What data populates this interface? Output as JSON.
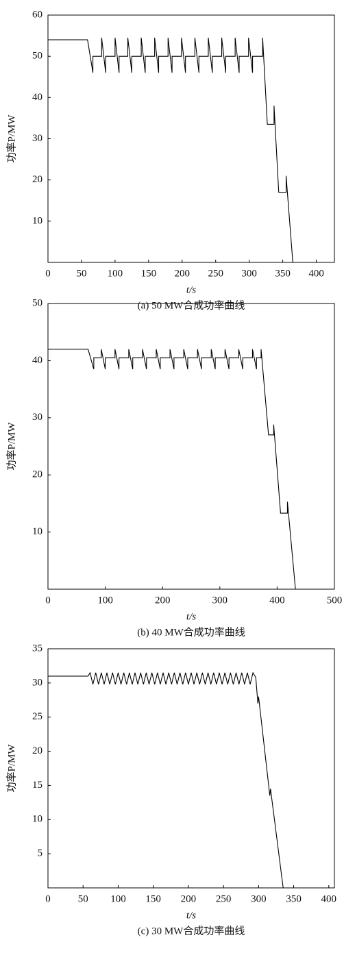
{
  "chart_data": [
    {
      "type": "line",
      "caption": "(a) 50 MW合成功率曲线",
      "xlabel": "t/s",
      "ylabel": "功率P/MW",
      "color": "#000000",
      "xlim": [
        0,
        427
      ],
      "ylim": [
        0,
        60
      ],
      "xticks": [
        0,
        50,
        100,
        150,
        200,
        250,
        300,
        350,
        400
      ],
      "yticks": [
        10,
        20,
        30,
        40,
        50,
        60
      ],
      "x": [
        0,
        59,
        67,
        67,
        80,
        80,
        86,
        86,
        100,
        100,
        106,
        106,
        119,
        119,
        125,
        125,
        139,
        139,
        145,
        145,
        159,
        159,
        165,
        165,
        179,
        179,
        185,
        185,
        199,
        199,
        205,
        205,
        219,
        219,
        225,
        225,
        239,
        239,
        245,
        245,
        259,
        259,
        265,
        265,
        279,
        279,
        285,
        285,
        299,
        299,
        305,
        305,
        320,
        320,
        327,
        337,
        337,
        344,
        355,
        355,
        365,
        375
      ],
      "values": [
        54,
        54,
        46,
        50,
        50,
        54.5,
        46,
        50,
        50,
        54.5,
        46,
        50,
        50,
        54.5,
        46,
        50,
        50,
        54.5,
        46,
        50,
        50,
        54.5,
        46,
        50,
        50,
        54.5,
        46,
        50,
        50,
        54.5,
        46,
        50,
        50,
        54.5,
        46,
        50,
        50,
        54.5,
        46,
        50,
        50,
        54.5,
        46,
        50,
        50,
        54.5,
        46,
        50,
        50,
        54.5,
        46,
        50,
        50,
        54.5,
        33.5,
        33.5,
        38,
        17,
        17,
        21,
        0,
        0
      ]
    },
    {
      "type": "line",
      "caption": "(b) 40 MW合成功率曲线",
      "xlabel": "t/s",
      "ylabel": "功率P/MW",
      "color": "#000000",
      "xlim": [
        0,
        500
      ],
      "ylim": [
        0,
        50
      ],
      "xticks": [
        0,
        100,
        200,
        300,
        400,
        500
      ],
      "yticks": [
        10,
        20,
        30,
        40,
        50
      ],
      "x": [
        0,
        70,
        80,
        80,
        93,
        93,
        100,
        100,
        117,
        117,
        124,
        124,
        141,
        141,
        148,
        148,
        165,
        165,
        172,
        172,
        189,
        189,
        196,
        196,
        213,
        213,
        220,
        220,
        237,
        237,
        244,
        244,
        261,
        261,
        268,
        268,
        285,
        285,
        292,
        292,
        309,
        309,
        316,
        316,
        333,
        333,
        340,
        340,
        357,
        357,
        364,
        364,
        372,
        372,
        385,
        394,
        394,
        406,
        418,
        418,
        432,
        440
      ],
      "values": [
        42,
        42,
        38.5,
        40.5,
        40.5,
        42,
        38.5,
        40.5,
        40.5,
        42,
        38.5,
        40.5,
        40.5,
        42,
        38.5,
        40.5,
        40.5,
        42,
        38.5,
        40.5,
        40.5,
        42,
        38.5,
        40.5,
        40.5,
        42,
        38.5,
        40.5,
        40.5,
        42,
        38.5,
        40.5,
        40.5,
        42,
        38.5,
        40.5,
        40.5,
        42,
        38.5,
        40.5,
        40.5,
        42,
        38.5,
        40.5,
        40.5,
        42,
        38.5,
        40.5,
        40.5,
        42,
        38.5,
        40.5,
        40.5,
        42,
        27,
        27,
        28.8,
        13.3,
        13.3,
        15.3,
        0,
        0
      ]
    },
    {
      "type": "line",
      "caption": "(c) 30 MW合成功率曲线",
      "xlabel": "t/s",
      "ylabel": "功率P/MW",
      "color": "#000000",
      "xlim": [
        0,
        408
      ],
      "ylim": [
        0,
        35
      ],
      "xticks": [
        0,
        50,
        100,
        150,
        200,
        250,
        300,
        350,
        400
      ],
      "yticks": [
        5,
        10,
        15,
        20,
        25,
        30,
        35
      ],
      "x": [
        0,
        57,
        60,
        64,
        68,
        72,
        76,
        80,
        84,
        88,
        92,
        96,
        100,
        104,
        108,
        112,
        116,
        120,
        124,
        128,
        132,
        136,
        140,
        144,
        148,
        152,
        156,
        160,
        164,
        168,
        172,
        176,
        180,
        184,
        188,
        192,
        196,
        200,
        204,
        208,
        212,
        216,
        220,
        224,
        228,
        232,
        236,
        240,
        244,
        248,
        252,
        256,
        260,
        264,
        268,
        272,
        276,
        280,
        284,
        288,
        292,
        296,
        299,
        300,
        316,
        317,
        335,
        340
      ],
      "values": [
        31,
        31,
        31.5,
        29.8,
        31.5,
        29.8,
        31.5,
        29.8,
        31.5,
        29.8,
        31.5,
        29.8,
        31.5,
        29.8,
        31.5,
        29.8,
        31.5,
        29.8,
        31.5,
        29.8,
        31.5,
        29.8,
        31.5,
        29.8,
        31.5,
        29.8,
        31.5,
        29.8,
        31.5,
        29.8,
        31.5,
        29.8,
        31.5,
        29.8,
        31.5,
        29.8,
        31.5,
        29.8,
        31.5,
        29.8,
        31.5,
        29.8,
        31.5,
        29.8,
        31.5,
        29.8,
        31.5,
        29.8,
        31.5,
        29.8,
        31.5,
        29.8,
        31.5,
        29.8,
        31.5,
        29.8,
        31.5,
        29.8,
        31.5,
        29.8,
        31.5,
        30.8,
        27,
        28,
        13.5,
        14.5,
        0,
        0
      ]
    }
  ]
}
